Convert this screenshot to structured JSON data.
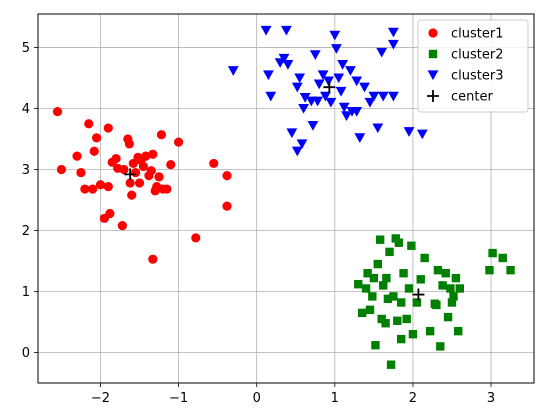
{
  "chart_data": {
    "type": "scatter",
    "xlim": [
      -2.8,
      3.55
    ],
    "ylim": [
      -0.5,
      5.55
    ],
    "xticks": [
      -2,
      -1,
      0,
      1,
      2,
      3
    ],
    "xtick_labels": [
      "−2",
      "−1",
      "0",
      "1",
      "2",
      "3"
    ],
    "yticks": [
      0,
      1,
      2,
      3,
      4,
      5
    ],
    "ytick_labels": [
      "0",
      "1",
      "2",
      "3",
      "4",
      "5"
    ],
    "grid": true,
    "legend_position": "top-right",
    "series": [
      {
        "name": "cluster1",
        "marker": "circle",
        "color": "#ff0000",
        "points": [
          [
            -2.55,
            3.95
          ],
          [
            -2.5,
            3.0
          ],
          [
            -2.3,
            3.22
          ],
          [
            -2.25,
            2.95
          ],
          [
            -2.2,
            2.68
          ],
          [
            -2.15,
            3.75
          ],
          [
            -2.1,
            2.68
          ],
          [
            -2.08,
            3.3
          ],
          [
            -2.05,
            3.52
          ],
          [
            -2.0,
            2.75
          ],
          [
            -1.95,
            2.2
          ],
          [
            -1.9,
            3.68
          ],
          [
            -1.9,
            2.72
          ],
          [
            -1.88,
            2.28
          ],
          [
            -1.85,
            3.12
          ],
          [
            -1.8,
            3.18
          ],
          [
            -1.78,
            3.02
          ],
          [
            -1.72,
            2.08
          ],
          [
            -1.7,
            3.0
          ],
          [
            -1.65,
            3.5
          ],
          [
            -1.63,
            3.42
          ],
          [
            -1.62,
            2.78
          ],
          [
            -1.6,
            2.58
          ],
          [
            -1.58,
            3.1
          ],
          [
            -1.55,
            2.95
          ],
          [
            -1.52,
            3.2
          ],
          [
            -1.5,
            2.78
          ],
          [
            -1.48,
            3.15
          ],
          [
            -1.45,
            3.05
          ],
          [
            -1.42,
            3.22
          ],
          [
            -1.38,
            2.9
          ],
          [
            -1.35,
            2.98
          ],
          [
            -1.33,
            3.25
          ],
          [
            -1.3,
            2.65
          ],
          [
            -1.28,
            2.72
          ],
          [
            -1.25,
            2.88
          ],
          [
            -1.22,
            3.57
          ],
          [
            -1.2,
            2.68
          ],
          [
            -1.15,
            2.68
          ],
          [
            -1.1,
            3.08
          ],
          [
            -1.0,
            3.45
          ],
          [
            -1.33,
            1.53
          ],
          [
            -0.78,
            1.88
          ],
          [
            -0.55,
            3.1
          ],
          [
            -0.38,
            2.9
          ],
          [
            -0.38,
            2.4
          ]
        ]
      },
      {
        "name": "cluster2",
        "marker": "square",
        "color": "#008000",
        "points": [
          [
            1.3,
            1.12
          ],
          [
            1.35,
            0.65
          ],
          [
            1.4,
            1.05
          ],
          [
            1.42,
            1.3
          ],
          [
            1.45,
            0.7
          ],
          [
            1.48,
            0.92
          ],
          [
            1.5,
            1.22
          ],
          [
            1.52,
            0.12
          ],
          [
            1.55,
            1.45
          ],
          [
            1.58,
            1.85
          ],
          [
            1.6,
            0.55
          ],
          [
            1.62,
            1.1
          ],
          [
            1.65,
            0.48
          ],
          [
            1.66,
            1.22
          ],
          [
            1.68,
            0.88
          ],
          [
            1.7,
            1.65
          ],
          [
            1.72,
            -0.2
          ],
          [
            1.75,
            0.92
          ],
          [
            1.78,
            1.87
          ],
          [
            1.8,
            0.52
          ],
          [
            1.82,
            1.8
          ],
          [
            1.85,
            0.82
          ],
          [
            1.85,
            0.22
          ],
          [
            1.88,
            1.3
          ],
          [
            1.92,
            0.55
          ],
          [
            1.95,
            1.05
          ],
          [
            1.98,
            1.75
          ],
          [
            2.0,
            0.3
          ],
          [
            2.05,
            0.82
          ],
          [
            2.1,
            1.2
          ],
          [
            2.15,
            1.55
          ],
          [
            2.22,
            0.35
          ],
          [
            2.28,
            0.8
          ],
          [
            2.3,
            0.78
          ],
          [
            2.32,
            1.35
          ],
          [
            2.35,
            0.1
          ],
          [
            2.38,
            1.1
          ],
          [
            2.42,
            1.3
          ],
          [
            2.45,
            0.58
          ],
          [
            2.48,
            1.05
          ],
          [
            2.5,
            0.82
          ],
          [
            2.52,
            0.92
          ],
          [
            2.55,
            1.22
          ],
          [
            2.58,
            0.35
          ],
          [
            2.6,
            1.05
          ],
          [
            2.98,
            1.35
          ],
          [
            3.02,
            1.63
          ],
          [
            3.15,
            1.55
          ],
          [
            3.25,
            1.35
          ]
        ]
      },
      {
        "name": "cluster3",
        "marker": "triangle-down",
        "color": "#0000ff",
        "points": [
          [
            -0.3,
            4.62
          ],
          [
            0.12,
            5.28
          ],
          [
            0.15,
            4.55
          ],
          [
            0.18,
            4.2
          ],
          [
            0.3,
            4.75
          ],
          [
            0.35,
            4.82
          ],
          [
            0.38,
            5.28
          ],
          [
            0.4,
            4.72
          ],
          [
            0.45,
            3.6
          ],
          [
            0.52,
            4.35
          ],
          [
            0.52,
            3.3
          ],
          [
            0.55,
            4.5
          ],
          [
            0.58,
            3.42
          ],
          [
            0.6,
            4.0
          ],
          [
            0.62,
            4.18
          ],
          [
            0.7,
            4.12
          ],
          [
            0.72,
            3.72
          ],
          [
            0.75,
            4.88
          ],
          [
            0.78,
            4.12
          ],
          [
            0.8,
            4.4
          ],
          [
            0.85,
            4.55
          ],
          [
            0.88,
            4.2
          ],
          [
            0.92,
            4.45
          ],
          [
            0.95,
            4.1
          ],
          [
            1.0,
            5.2
          ],
          [
            1.02,
            4.98
          ],
          [
            1.05,
            4.5
          ],
          [
            1.08,
            4.28
          ],
          [
            1.1,
            4.72
          ],
          [
            1.12,
            4.02
          ],
          [
            1.15,
            3.88
          ],
          [
            1.2,
            4.62
          ],
          [
            1.22,
            3.95
          ],
          [
            1.28,
            4.45
          ],
          [
            1.32,
            3.52
          ],
          [
            1.38,
            4.35
          ],
          [
            1.45,
            4.1
          ],
          [
            1.5,
            4.2
          ],
          [
            1.55,
            3.68
          ],
          [
            1.6,
            4.92
          ],
          [
            1.62,
            4.2
          ],
          [
            1.75,
            5.25
          ],
          [
            1.75,
            5.05
          ],
          [
            1.75,
            4.2
          ],
          [
            1.95,
            3.62
          ],
          [
            2.12,
            3.58
          ],
          [
            1.28,
            3.95
          ]
        ]
      },
      {
        "name": "center",
        "marker": "plus",
        "color": "#000000",
        "points": [
          [
            -1.62,
            2.92
          ],
          [
            0.93,
            4.35
          ],
          [
            2.07,
            0.95
          ]
        ]
      }
    ]
  }
}
